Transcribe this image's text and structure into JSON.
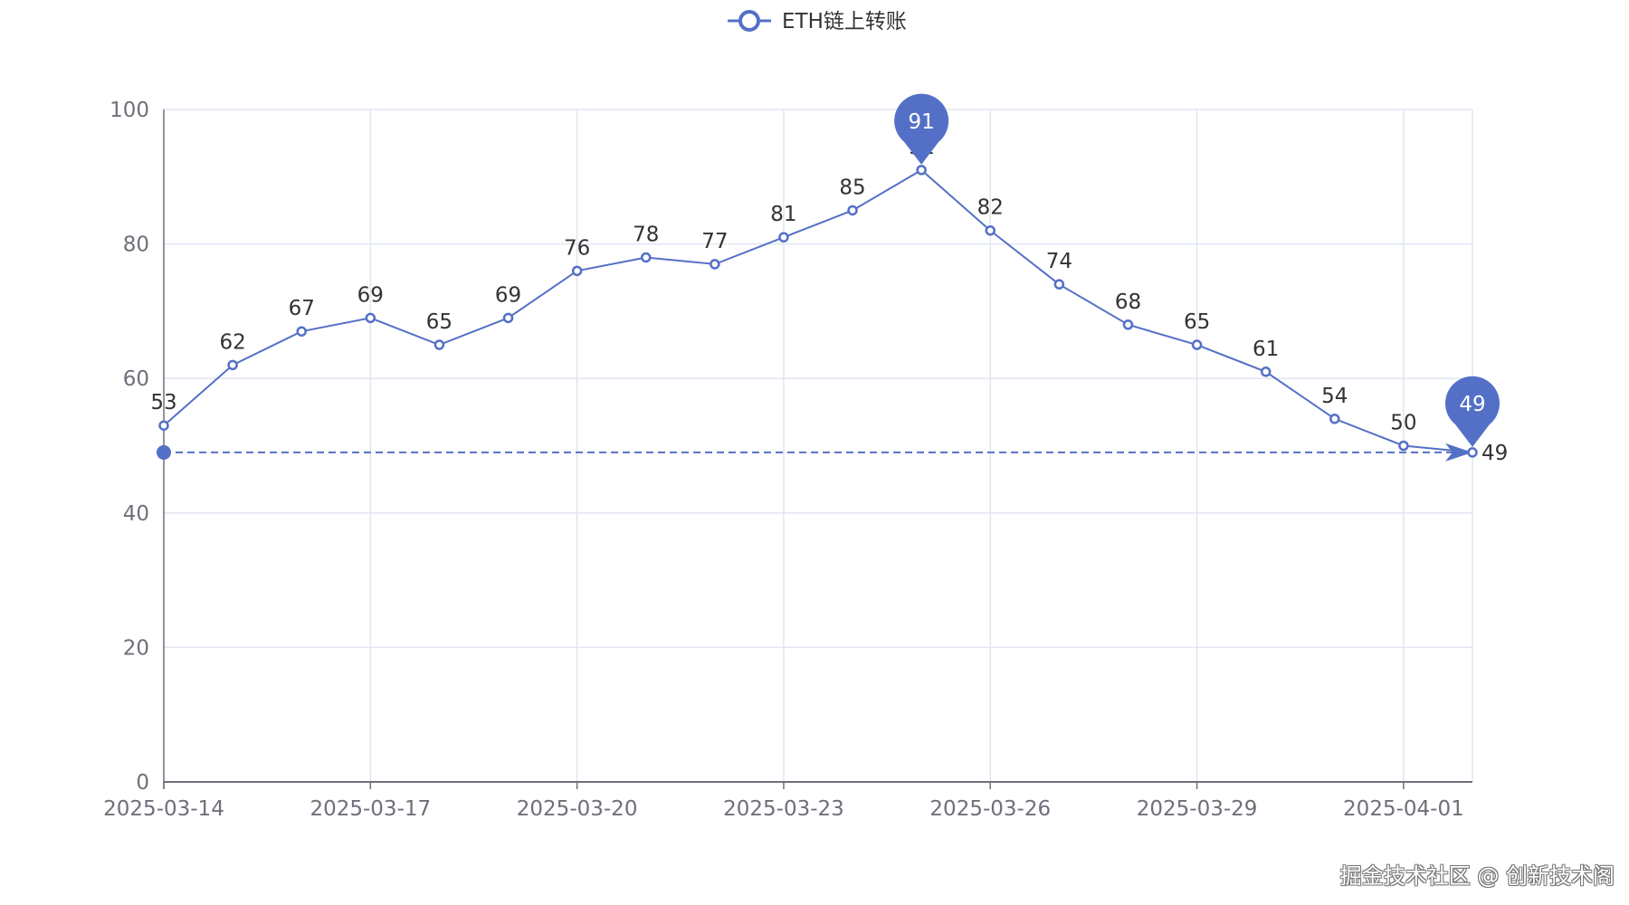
{
  "colors": {
    "series": "#5470c6",
    "grid": "#e0e6f1",
    "axis": "#6e7079",
    "label": "#333333"
  },
  "chart_data": {
    "type": "line",
    "legend_position": "top-center",
    "grid": true,
    "ylim": [
      0,
      100
    ],
    "y_ticks": [
      "0",
      "20",
      "40",
      "60",
      "80",
      "100"
    ],
    "x_tick_labels": [
      "2025-03-14",
      "2025-03-17",
      "2025-03-20",
      "2025-03-23",
      "2025-03-26",
      "2025-03-29",
      "2025-04-01"
    ],
    "x": [
      "2025-03-14",
      "2025-03-15",
      "2025-03-16",
      "2025-03-17",
      "2025-03-18",
      "2025-03-19",
      "2025-03-20",
      "2025-03-21",
      "2025-03-22",
      "2025-03-23",
      "2025-03-24",
      "2025-03-25",
      "2025-03-26",
      "2025-03-27",
      "2025-03-28",
      "2025-03-29",
      "2025-03-30",
      "2025-03-31",
      "2025-04-01",
      "2025-04-02"
    ],
    "series": [
      {
        "name": "ETH链上转账",
        "values": [
          53,
          62,
          67,
          69,
          65,
          69,
          76,
          78,
          77,
          81,
          85,
          91,
          82,
          74,
          68,
          65,
          61,
          54,
          50,
          49
        ]
      }
    ],
    "mark_points": [
      {
        "label": "91",
        "x": "2025-03-25",
        "y": 91
      },
      {
        "label": "49",
        "x": "2025-04-02",
        "y": 49
      }
    ],
    "mark_line": {
      "from_x": "2025-03-14",
      "to_x": "2025-04-02",
      "y": 49,
      "label": "49"
    }
  },
  "watermark": "掘金技术社区 @ 创新技术阁"
}
